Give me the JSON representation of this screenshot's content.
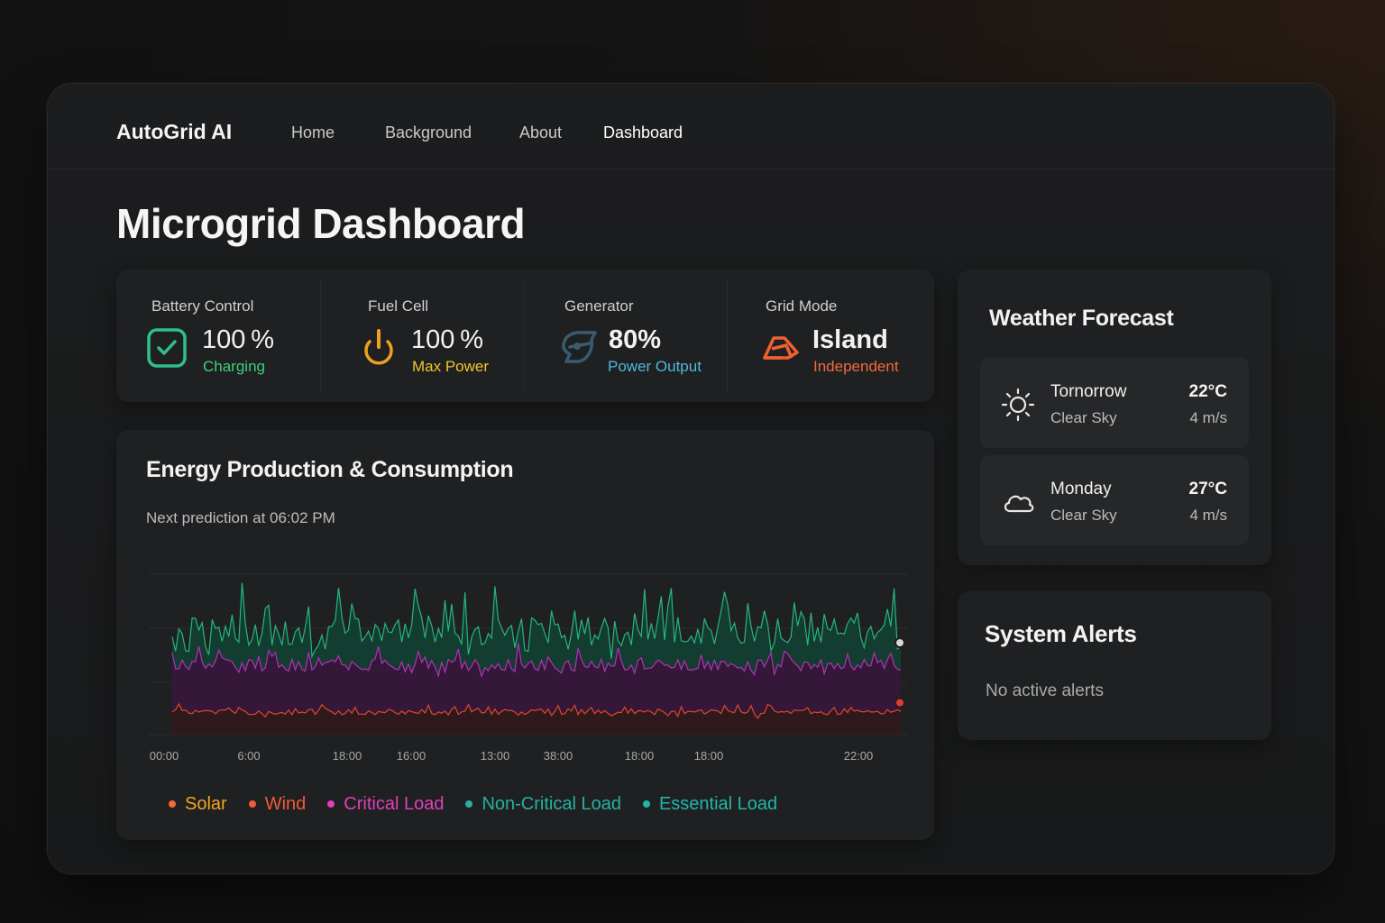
{
  "nav": {
    "brand": "AutoGrid AI",
    "links": [
      {
        "label": "Home"
      },
      {
        "label": "Background"
      },
      {
        "label": "About"
      },
      {
        "label": "Dashboard",
        "active": true
      }
    ]
  },
  "page": {
    "title": "Microgrid Dashboard"
  },
  "status": {
    "battery": {
      "label": "Battery Control",
      "value": "100 %",
      "sub": "Charging",
      "icon": "check-square-icon",
      "color": "#2fbf8a",
      "sub_color": "#3ecf7a"
    },
    "fuel_cell": {
      "label": "Fuel Cell",
      "value": "100 %",
      "sub": "Max Power",
      "icon": "power-icon",
      "color": "#f0a020",
      "sub_color": "#f2c42a"
    },
    "generator": {
      "label": "Generator",
      "value": "80%",
      "sub": "Power Output",
      "icon": "generator-icon",
      "color": "#3a5a70",
      "sub_color": "#4fb8d8"
    },
    "grid_mode": {
      "label": "Grid Mode",
      "value": "Island",
      "sub": "Independent",
      "icon": "island-icon",
      "color": "#f06030",
      "sub_color": "#f26a3a"
    }
  },
  "chart": {
    "title": "Energy Production & Consumption",
    "subtitle": "Next prediction at 06:02 PM"
  },
  "chart_data": {
    "type": "area",
    "x_ticks": [
      "00:00",
      "6:00",
      "18:00",
      "16:00",
      "13:00",
      "38:00",
      "18:00",
      "18:00",
      "22:00"
    ],
    "series_count_points": 220,
    "bands": [
      {
        "key": "top",
        "color": "#27b57e",
        "fill": "#123d30",
        "base": 0.55,
        "amp": 0.22
      },
      {
        "key": "middle",
        "color": "#b431b6",
        "fill": "#35173a",
        "base": 0.37,
        "amp": 0.09
      },
      {
        "key": "bottom",
        "color": "#e2462c",
        "fill": "#2e1a1c",
        "base": 0.12,
        "amp": 0.04
      }
    ],
    "end_markers": [
      {
        "color": "#d8d8d8",
        "value": 0.49
      },
      {
        "color": "#e23b2f",
        "value": 0.17
      }
    ],
    "legend": [
      {
        "name": "Solar",
        "color": "#f5a623",
        "dot": "#ef6b3a"
      },
      {
        "name": "Wind",
        "color": "#ef5a3a",
        "dot": "#ef5a3a"
      },
      {
        "name": "Critical Load",
        "color": "#e040b8",
        "dot": "#e040b8"
      },
      {
        "name": "Non-Critical Load",
        "color": "#26b0a4",
        "dot": "#26b0a4"
      },
      {
        "name": "Essential Load",
        "color": "#1fb7a8",
        "dot": "#1fb7a8"
      }
    ],
    "grid": true
  },
  "weather": {
    "title": "Weather Forecast",
    "days": [
      {
        "name": "Tornorrow",
        "condition": "Clear Sky",
        "temp": "22°C",
        "wind": "4 m/s",
        "icon": "sun-icon"
      },
      {
        "name": "Monday",
        "condition": "Clear Sky",
        "temp": "27°C",
        "wind": "4 m/s",
        "icon": "cloud-icon"
      }
    ]
  },
  "alerts": {
    "title": "System Alerts",
    "text": "No active alerts"
  }
}
